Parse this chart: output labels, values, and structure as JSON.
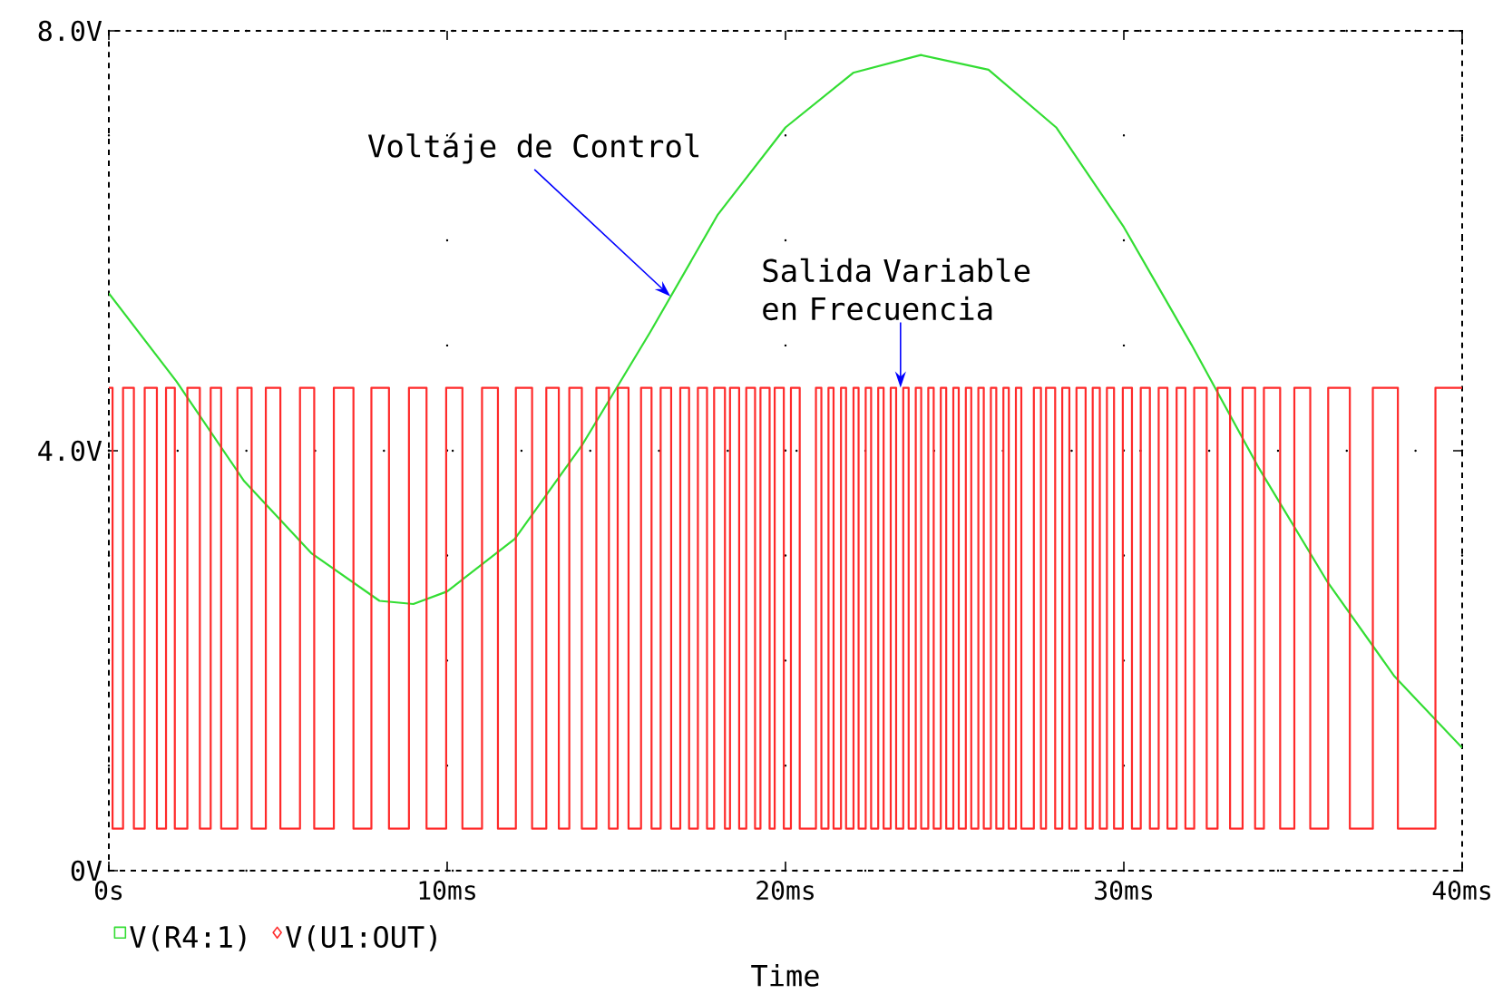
{
  "chart_data": {
    "type": "line",
    "xlabel": "Time",
    "xlim": [
      0,
      40
    ],
    "ylim": [
      0,
      8
    ],
    "xticks": [
      {
        "value": 0,
        "label": "0s"
      },
      {
        "value": 10,
        "label": "10ms"
      },
      {
        "value": 20,
        "label": "20ms"
      },
      {
        "value": 30,
        "label": "30ms"
      },
      {
        "value": 40,
        "label": "40ms"
      }
    ],
    "yticks": [
      {
        "value": 0,
        "label": "0V"
      },
      {
        "value": 4,
        "label": "4.0V"
      },
      {
        "value": 8,
        "label": "8.0V"
      }
    ],
    "grid": true,
    "legend": "bottom left",
    "series": [
      {
        "name": "V(R4:1)",
        "color": "#33dd33",
        "x": [
          0,
          2,
          4,
          6,
          8,
          9,
          10,
          12,
          14,
          16,
          18,
          20,
          22,
          24,
          26,
          28,
          30,
          32,
          34,
          36,
          38,
          40
        ],
        "values": [
          5.5,
          4.66,
          3.71,
          3.02,
          2.57,
          2.54,
          2.66,
          3.16,
          4.06,
          5.13,
          6.25,
          7.08,
          7.6,
          7.77,
          7.63,
          7.08,
          6.13,
          5.01,
          3.83,
          2.76,
          1.85,
          1.17
        ]
      },
      {
        "name": "V(U1:OUT)",
        "color": "#ff2a2a",
        "type": "step",
        "x": [
          0,
          0.11,
          0.42,
          0.74,
          1.06,
          1.42,
          1.69,
          1.95,
          2.32,
          2.69,
          3.01,
          3.32,
          3.8,
          4.22,
          4.64,
          5.07,
          5.65,
          6.07,
          6.65,
          7.23,
          7.76,
          8.28,
          8.87,
          9.39,
          9.97,
          10.45,
          11.03,
          11.5,
          12.03,
          12.51,
          12.93,
          13.3,
          13.61,
          13.98,
          14.41,
          14.78,
          15.04,
          15.36,
          15.73,
          16.04,
          16.31,
          16.62,
          16.89,
          17.15,
          17.41,
          17.68,
          17.89,
          18.21,
          18.36,
          18.63,
          18.84,
          19.1,
          19.26,
          19.53,
          19.68,
          19.95,
          20.16,
          20.42,
          20.9,
          21.06,
          21.27,
          21.42,
          21.64,
          21.79,
          22.01,
          22.16,
          22.37,
          22.53,
          22.74,
          22.9,
          23.11,
          23.27,
          23.48,
          23.64,
          23.85,
          24.01,
          24.22,
          24.38,
          24.59,
          24.75,
          24.96,
          25.12,
          25.33,
          25.49,
          25.7,
          25.86,
          26.07,
          26.23,
          26.44,
          26.6,
          26.81,
          26.97,
          27.34,
          27.55,
          27.7,
          27.97,
          28.18,
          28.39,
          28.6,
          28.87,
          29.08,
          29.29,
          29.5,
          29.71,
          29.97,
          30.24,
          30.5,
          30.77,
          31.03,
          31.29,
          31.56,
          31.82,
          32.08,
          32.45,
          32.77,
          33.14,
          33.51,
          33.88,
          34.14,
          34.62,
          35.04,
          35.51,
          36.04,
          36.68,
          37.36,
          38.1,
          39.21,
          40
        ],
        "values": [
          4.6,
          0.4,
          4.6,
          0.4,
          4.6,
          0.4,
          4.6,
          0.4,
          4.6,
          0.4,
          4.6,
          0.4,
          4.6,
          0.4,
          4.6,
          0.4,
          4.6,
          0.4,
          4.6,
          0.4,
          4.6,
          0.4,
          4.6,
          0.4,
          4.6,
          0.4,
          4.6,
          0.4,
          4.6,
          0.4,
          4.6,
          0.4,
          4.6,
          0.4,
          4.6,
          0.4,
          4.6,
          0.4,
          4.6,
          0.4,
          4.6,
          0.4,
          4.6,
          0.4,
          4.6,
          0.4,
          4.6,
          0.4,
          4.6,
          0.4,
          4.6,
          0.4,
          4.6,
          0.4,
          4.6,
          0.4,
          4.6,
          0.4,
          4.6,
          0.4,
          4.6,
          0.4,
          4.6,
          0.4,
          4.6,
          0.4,
          4.6,
          0.4,
          4.6,
          0.4,
          4.6,
          0.4,
          4.6,
          0.4,
          4.6,
          0.4,
          4.6,
          0.4,
          4.6,
          0.4,
          4.6,
          0.4,
          4.6,
          0.4,
          4.6,
          0.4,
          4.6,
          0.4,
          4.6,
          0.4,
          4.6,
          0.4,
          4.6,
          0.4,
          4.6,
          0.4,
          4.6,
          0.4,
          4.6,
          0.4,
          4.6,
          0.4,
          4.6,
          0.4,
          4.6,
          0.4,
          4.6,
          0.4,
          4.6,
          0.4,
          4.6,
          0.4,
          4.6,
          0.4,
          4.6,
          0.4,
          4.6,
          0.4,
          4.6,
          0.4,
          4.6,
          0.4,
          4.6,
          0.4,
          4.6,
          0.4,
          4.6,
          4.6
        ]
      }
    ],
    "annotations": [
      {
        "text": "Voltáje de Control",
        "x": 16.6,
        "y": 5.47
      },
      {
        "text": "Salida Variable en Frecuencia",
        "x": 23.4,
        "y": 4.6
      }
    ]
  }
}
